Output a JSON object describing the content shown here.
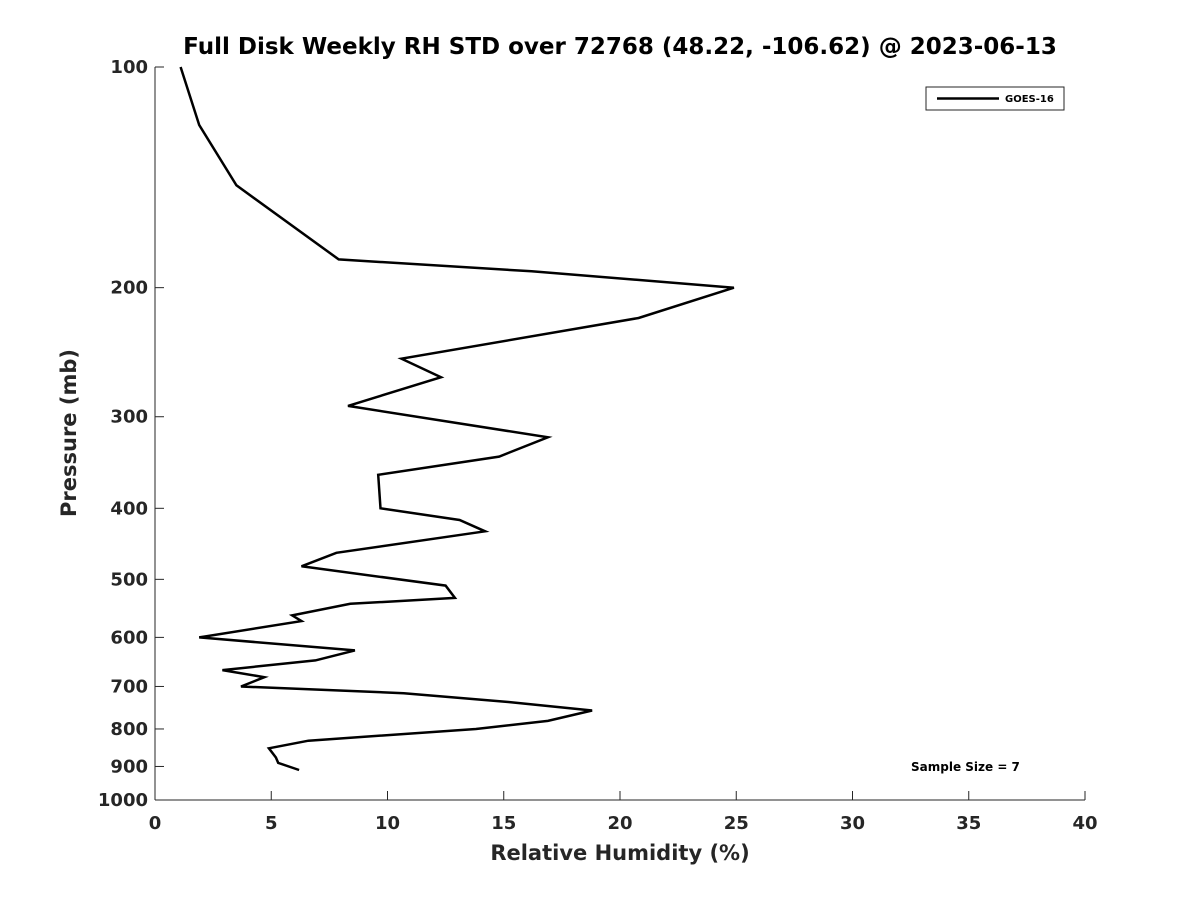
{
  "chart_data": {
    "type": "line",
    "title": "Full Disk Weekly RH STD over 72768 (48.22, -106.62) @ 2023-06-13",
    "xlabel": "Relative Humidity (%)",
    "ylabel": "Pressure (mb)",
    "xlim": [
      0,
      40
    ],
    "ylim": [
      100,
      1000
    ],
    "y_scale": "log",
    "y_reversed": true,
    "xticks": [
      0,
      5,
      10,
      15,
      20,
      25,
      30,
      35,
      40
    ],
    "yticks": [
      100,
      200,
      300,
      400,
      500,
      600,
      700,
      800,
      900,
      1000
    ],
    "grid": false,
    "legend_position": "top-right",
    "annotation": "Sample Size = 7",
    "series": [
      {
        "name": "GOES-16",
        "color": "#000000",
        "x": [
          1.1,
          1.9,
          3.5,
          7.9,
          16.2,
          24.9,
          20.8,
          10.6,
          12.3,
          8.3,
          16.9,
          14.8,
          9.6,
          9.7,
          13.1,
          14.2,
          7.8,
          6.3,
          12.5,
          12.9,
          8.4,
          5.9,
          6.3,
          1.9,
          8.6,
          6.9,
          2.9,
          4.7,
          3.7,
          10.7,
          15.2,
          18.8,
          16.9,
          13.8,
          6.6,
          4.9,
          5.2,
          5.3,
          6.2
        ],
        "y": [
          100,
          120,
          145,
          183,
          190,
          200,
          220,
          250,
          265,
          290,
          320,
          340,
          360,
          400,
          415,
          430,
          460,
          480,
          510,
          530,
          540,
          560,
          570,
          600,
          625,
          645,
          665,
          680,
          700,
          715,
          735,
          755,
          780,
          800,
          830,
          850,
          875,
          890,
          910
        ]
      }
    ]
  }
}
